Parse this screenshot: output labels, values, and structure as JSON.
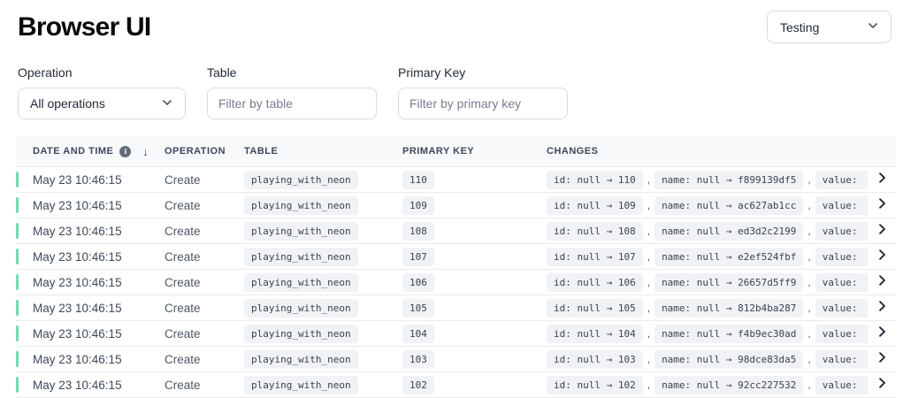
{
  "page": {
    "title": "Browser UI"
  },
  "branch_select": {
    "value": "Testing"
  },
  "filters": {
    "operation": {
      "label": "Operation",
      "value": "All operations"
    },
    "table": {
      "label": "Table",
      "placeholder": "Filter by table"
    },
    "primary_key": {
      "label": "Primary Key",
      "placeholder": "Filter by primary key"
    }
  },
  "table": {
    "columns": [
      "DATE AND TIME",
      "OPERATION",
      "TABLE",
      "PRIMARY KEY",
      "CHANGES"
    ],
    "sort_icon": "↓",
    "info_icon": "i",
    "rows": [
      {
        "date": "May 23 10:46:15",
        "operation": "Create",
        "table": "playing_with_neon",
        "primary_key": "110",
        "changes": [
          "id: null → 110",
          "name: null → f899139df5",
          "value:"
        ]
      },
      {
        "date": "May 23 10:46:15",
        "operation": "Create",
        "table": "playing_with_neon",
        "primary_key": "109",
        "changes": [
          "id: null → 109",
          "name: null → ac627ab1cc",
          "value:"
        ]
      },
      {
        "date": "May 23 10:46:15",
        "operation": "Create",
        "table": "playing_with_neon",
        "primary_key": "108",
        "changes": [
          "id: null → 108",
          "name: null → ed3d2c2199",
          "value:"
        ]
      },
      {
        "date": "May 23 10:46:15",
        "operation": "Create",
        "table": "playing_with_neon",
        "primary_key": "107",
        "changes": [
          "id: null → 107",
          "name: null → e2ef524fbf",
          "value:"
        ]
      },
      {
        "date": "May 23 10:46:15",
        "operation": "Create",
        "table": "playing_with_neon",
        "primary_key": "106",
        "changes": [
          "id: null → 106",
          "name: null → 26657d5ff9",
          "value:"
        ]
      },
      {
        "date": "May 23 10:46:15",
        "operation": "Create",
        "table": "playing_with_neon",
        "primary_key": "105",
        "changes": [
          "id: null → 105",
          "name: null → 812b4ba287",
          "value:"
        ]
      },
      {
        "date": "May 23 10:46:15",
        "operation": "Create",
        "table": "playing_with_neon",
        "primary_key": "104",
        "changes": [
          "id: null → 104",
          "name: null → f4b9ec30ad",
          "value:"
        ]
      },
      {
        "date": "May 23 10:46:15",
        "operation": "Create",
        "table": "playing_with_neon",
        "primary_key": "103",
        "changes": [
          "id: null → 103",
          "name: null → 98dce83da5",
          "value:"
        ]
      },
      {
        "date": "May 23 10:46:15",
        "operation": "Create",
        "table": "playing_with_neon",
        "primary_key": "102",
        "changes": [
          "id: null → 102",
          "name: null → 92cc227532",
          "value:"
        ]
      }
    ]
  },
  "colors": {
    "accent": "#6ee0ab",
    "badge_bg": "#f1f2f5",
    "header_bg": "#f8f9fb"
  }
}
